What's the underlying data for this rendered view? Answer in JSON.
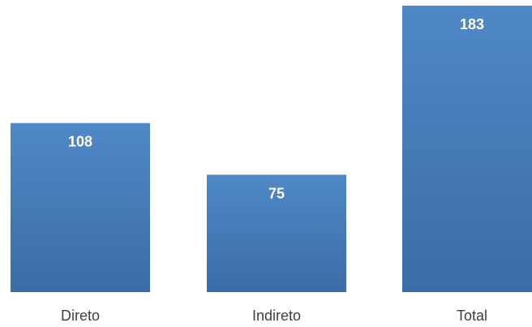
{
  "chart_data": {
    "type": "bar",
    "categories": [
      "Direto",
      "Indireto",
      "Total"
    ],
    "values": [
      108,
      75,
      183
    ],
    "value_labels": [
      "108",
      "75",
      "183"
    ],
    "title": "",
    "xlabel": "",
    "ylabel": "",
    "ylim": [
      0,
      183
    ],
    "grid": false,
    "legend": "none",
    "bar_color_top": "#4f88c6",
    "bar_color_bottom": "#3c6ca8"
  }
}
